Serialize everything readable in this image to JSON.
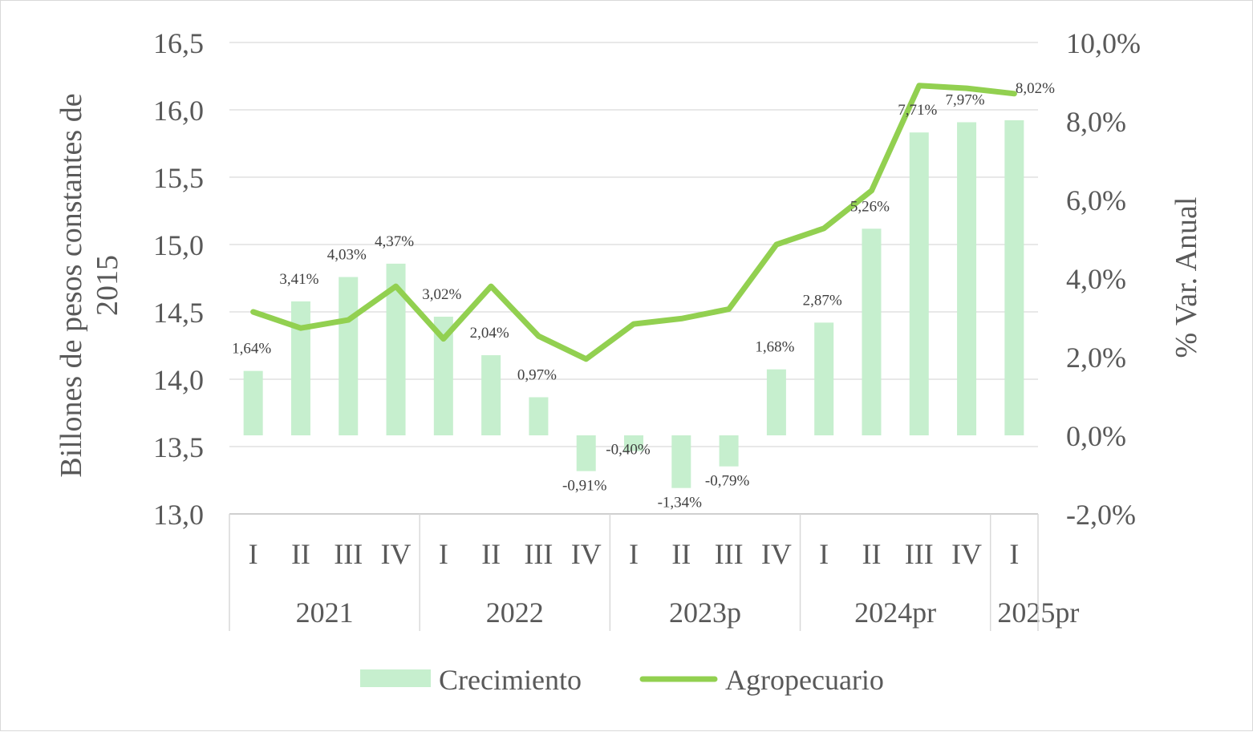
{
  "chart_data": {
    "type": "bar",
    "categories": [
      "I",
      "II",
      "III",
      "IV",
      "I",
      "II",
      "III",
      "IV",
      "I",
      "II",
      "III",
      "IV",
      "I",
      "II",
      "III",
      "IV",
      "I"
    ],
    "years": [
      {
        "label": "2021",
        "span": 4
      },
      {
        "label": "2022",
        "span": 4
      },
      {
        "label": "2023p",
        "span": 4
      },
      {
        "label": "2024pr",
        "span": 4
      },
      {
        "label": "2025pr",
        "span": 1
      }
    ],
    "series": [
      {
        "name": "Crecimiento",
        "type": "bar",
        "axis": "right",
        "color": "#c6efce",
        "values": [
          1.64,
          3.41,
          4.03,
          4.37,
          3.02,
          2.04,
          0.97,
          -0.91,
          -0.4,
          -1.34,
          -0.79,
          1.68,
          2.87,
          5.26,
          7.71,
          7.97,
          8.02
        ],
        "labels": [
          "1,64%",
          "3,41%",
          "4,03%",
          "4,37%",
          "3,02%",
          "2,04%",
          "0,97%",
          "-0,91%",
          "-0,40%",
          "-1,34%",
          "-0,79%",
          "1,68%",
          "2,87%",
          "5,26%",
          "7,71%",
          "7,97%",
          "8,02%"
        ]
      },
      {
        "name": "Agropecuario",
        "type": "line",
        "axis": "left",
        "color": "#92d050",
        "values": [
          14.5,
          14.38,
          14.44,
          14.69,
          14.3,
          14.69,
          14.32,
          14.15,
          14.41,
          14.45,
          14.52,
          15.0,
          15.12,
          15.4,
          16.18,
          16.16,
          16.12
        ]
      }
    ],
    "y_left": {
      "label": "Billones de pesos constantes de 2015",
      "label_lines": [
        "Billones de pesos constantes de",
        "2015"
      ],
      "ylim": [
        13.0,
        16.5
      ],
      "ticks": [
        "13,0",
        "13,5",
        "14,0",
        "14,5",
        "15,0",
        "15,5",
        "16,0",
        "16,5"
      ]
    },
    "y_right": {
      "label": "% Var. Anual",
      "ylim": [
        -2.0,
        10.0
      ],
      "ticks": [
        "-2,0%",
        "0,0%",
        "2,0%",
        "4,0%",
        "6,0%",
        "8,0%",
        "10,0%"
      ]
    },
    "grid": true,
    "legend_position": "bottom"
  },
  "colors": {
    "bar": "#c6efce",
    "line": "#92d050",
    "grid": "#d9d9d9",
    "text": "#595959"
  }
}
